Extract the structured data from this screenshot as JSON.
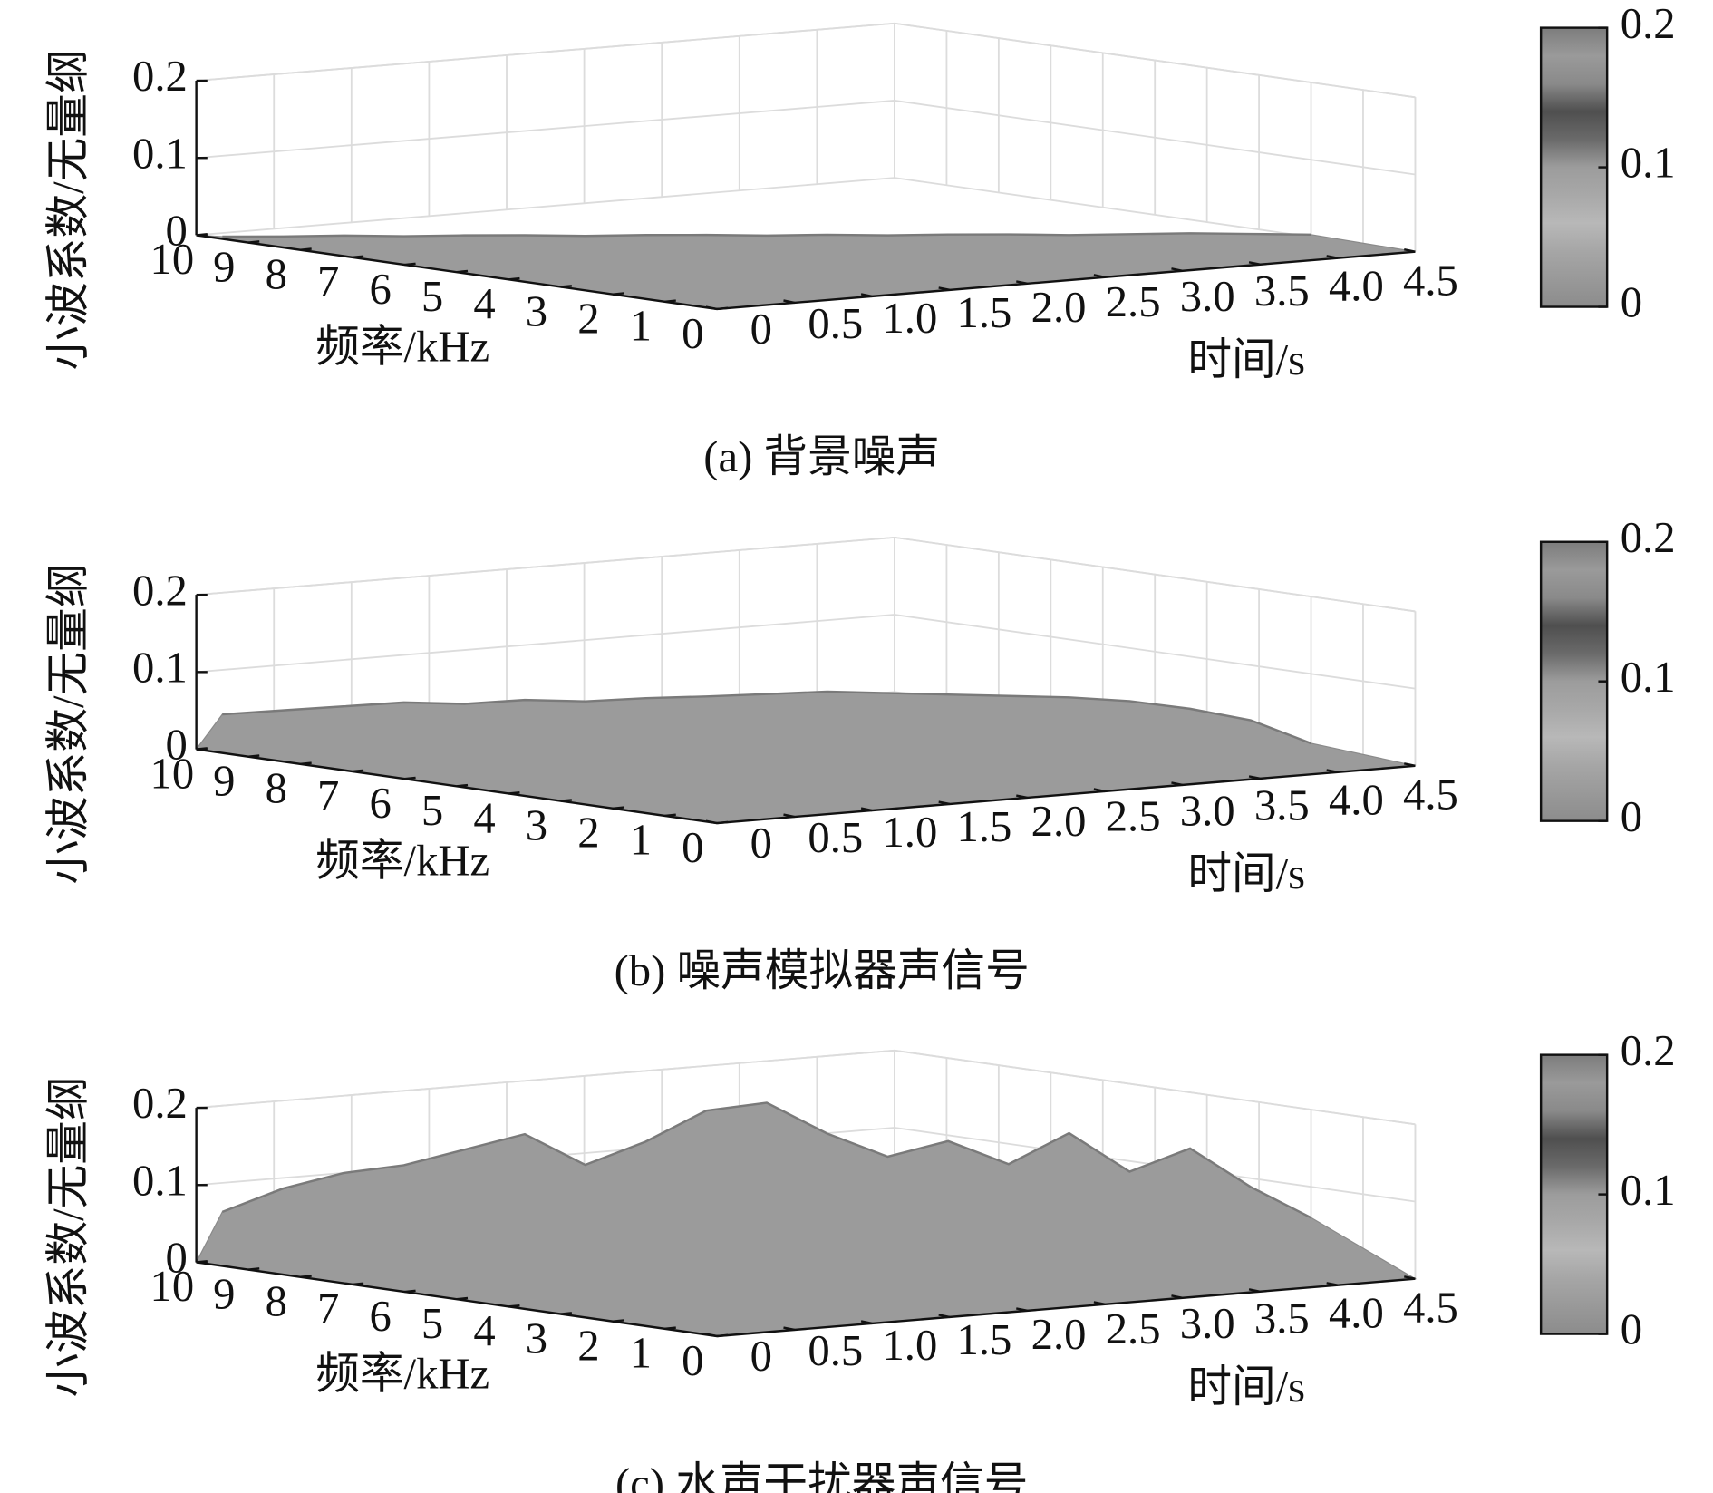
{
  "chart_data": [
    {
      "type": "surface",
      "title": "(a) 背景噪声",
      "xlabel": "时间/s",
      "ylabel": "频率/kHz",
      "zlabel": "小波系数/无量纲",
      "x": [
        0,
        0.25,
        0.5,
        0.75,
        1,
        1.25,
        1.5,
        1.75,
        2,
        2.25,
        2.5,
        2.75,
        3,
        3.25,
        3.5,
        3.75,
        4,
        4.25,
        4.5
      ],
      "values": [
        0.003,
        0.003,
        0.004,
        0.003,
        0.004,
        0.004,
        0.003,
        0.004,
        0.004,
        0.003,
        0.004,
        0.003,
        0.004,
        0.004,
        0.003,
        0.004,
        0.005,
        0.004,
        0.003
      ],
      "xlim": [
        0,
        4.5
      ],
      "xticks": [
        0,
        0.5,
        {
          "value": 1,
          "label": "1.0"
        },
        1.5,
        {
          "value": 2,
          "label": "2.0"
        },
        2.5,
        {
          "value": 3,
          "label": "3.0"
        },
        3.5,
        {
          "value": 4,
          "label": "4.0"
        },
        4.5
      ],
      "ylim": [
        0,
        10
      ],
      "yticks": [
        0,
        1,
        2,
        3,
        4,
        5,
        6,
        7,
        8,
        9,
        10
      ],
      "zlim": [
        0,
        0.2
      ],
      "zticks": [
        0,
        0.1,
        0.2
      ],
      "clim": [
        0,
        0.2
      ],
      "cticks": [
        0,
        0.1,
        0.2
      ],
      "colormap": [
        "#8c8c8c",
        "#999999",
        "#a6a6a6",
        "#b8b8b8",
        "#a8a8a8",
        "#9c9c9c",
        "#6a6a6a",
        "#4f4f4f",
        "#8a8a8a",
        "#9a9a9a",
        "#7c7c7c"
      ],
      "grid": true
    },
    {
      "type": "surface",
      "title": "(b) 噪声模拟器声信号",
      "xlabel": "时间/s",
      "ylabel": "频率/kHz",
      "zlabel": "小波系数/无量纲",
      "x": [
        0,
        0.25,
        0.5,
        0.75,
        1,
        1.25,
        1.5,
        1.75,
        2,
        2.25,
        2.5,
        2.75,
        3,
        3.25,
        3.5,
        3.75,
        4,
        4.25,
        4.5
      ],
      "values": [
        0.05,
        0.055,
        0.06,
        0.065,
        0.063,
        0.068,
        0.066,
        0.07,
        0.072,
        0.075,
        0.078,
        0.076,
        0.074,
        0.072,
        0.07,
        0.065,
        0.055,
        0.04,
        0.01
      ],
      "xlim": [
        0,
        4.5
      ],
      "xticks": [
        0,
        0.5,
        {
          "value": 1,
          "label": "1.0"
        },
        1.5,
        {
          "value": 2,
          "label": "2.0"
        },
        2.5,
        {
          "value": 3,
          "label": "3.0"
        },
        3.5,
        {
          "value": 4,
          "label": "4.0"
        },
        4.5
      ],
      "ylim": [
        0,
        10
      ],
      "yticks": [
        0,
        1,
        2,
        3,
        4,
        5,
        6,
        7,
        8,
        9,
        10
      ],
      "zlim": [
        0,
        0.2
      ],
      "zticks": [
        0,
        0.1,
        0.2
      ],
      "clim": [
        0,
        0.2
      ],
      "cticks": [
        0,
        0.1,
        0.2
      ],
      "colormap": [
        "#8c8c8c",
        "#999999",
        "#a6a6a6",
        "#b8b8b8",
        "#a8a8a8",
        "#9c9c9c",
        "#6a6a6a",
        "#4f4f4f",
        "#8a8a8a",
        "#9a9a9a",
        "#7c7c7c"
      ],
      "grid": true
    },
    {
      "type": "surface",
      "title": "(c) 水声干扰器声信号",
      "xlabel": "时间/s",
      "ylabel": "频率/kHz",
      "zlabel": "小波系数/无量纲",
      "x": [
        0,
        0.25,
        0.5,
        0.75,
        1,
        1.25,
        1.5,
        1.75,
        2,
        2.25,
        2.5,
        2.75,
        3,
        3.25,
        3.5,
        3.75,
        4,
        4.25,
        4.5
      ],
      "values": [
        0.07,
        0.1,
        0.12,
        0.13,
        0.15,
        0.17,
        0.13,
        0.16,
        0.2,
        0.21,
        0.17,
        0.14,
        0.16,
        0.13,
        0.17,
        0.12,
        0.15,
        0.1,
        0.06
      ],
      "xlim": [
        0,
        4.5
      ],
      "xticks": [
        0,
        0.5,
        {
          "value": 1,
          "label": "1.0"
        },
        1.5,
        {
          "value": 2,
          "label": "2.0"
        },
        2.5,
        {
          "value": 3,
          "label": "3.0"
        },
        3.5,
        {
          "value": 4,
          "label": "4.0"
        },
        4.5
      ],
      "ylim": [
        0,
        10
      ],
      "yticks": [
        0,
        1,
        2,
        3,
        4,
        5,
        6,
        7,
        8,
        9,
        10
      ],
      "zlim": [
        0,
        0.2
      ],
      "zticks": [
        0,
        0.1,
        0.2
      ],
      "clim": [
        0,
        0.2
      ],
      "cticks": [
        0,
        0.1,
        0.2
      ],
      "colormap": [
        "#8c8c8c",
        "#999999",
        "#a6a6a6",
        "#b8b8b8",
        "#a8a8a8",
        "#9c9c9c",
        "#6a6a6a",
        "#4f4f4f",
        "#8a8a8a",
        "#9a9a9a",
        "#7c7c7c"
      ],
      "grid": true
    }
  ]
}
